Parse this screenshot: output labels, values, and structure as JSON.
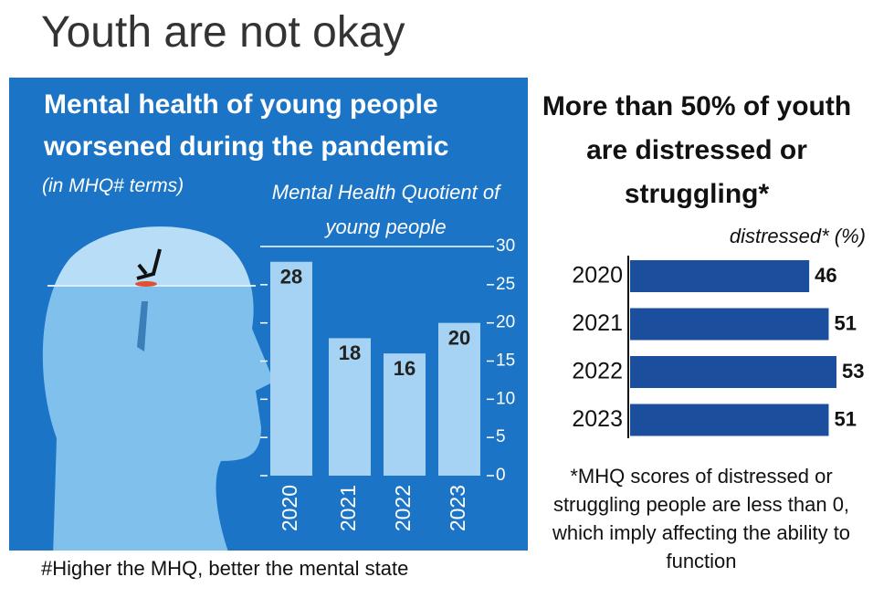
{
  "title": "Youth are not okay",
  "chart_data": [
    {
      "type": "bar",
      "title": "Mental health of young people worsened during the pandemic",
      "subtitle": "(in MHQ# terms)",
      "y_label": "Mental Health Quotient of young people",
      "categories": [
        "2020",
        "2021",
        "2022",
        "2023"
      ],
      "values": [
        28,
        18,
        16,
        20
      ],
      "color": "#a6d3f3",
      "ylim": [
        0,
        30
      ],
      "yticks": [
        0,
        5,
        10,
        15,
        20,
        25,
        30
      ],
      "note": "#Higher the MHQ, better the mental state"
    },
    {
      "type": "hbar",
      "title": "More than 50% of youth are distressed or struggling*",
      "x_label": "distressed* (%)",
      "categories": [
        "2020",
        "2021",
        "2022",
        "2023"
      ],
      "values": [
        46,
        51,
        53,
        51
      ],
      "color": "#1b4f9e",
      "note": "*MHQ scores of distressed or struggling people are less than 0, which imply affecting the ability to function"
    }
  ]
}
